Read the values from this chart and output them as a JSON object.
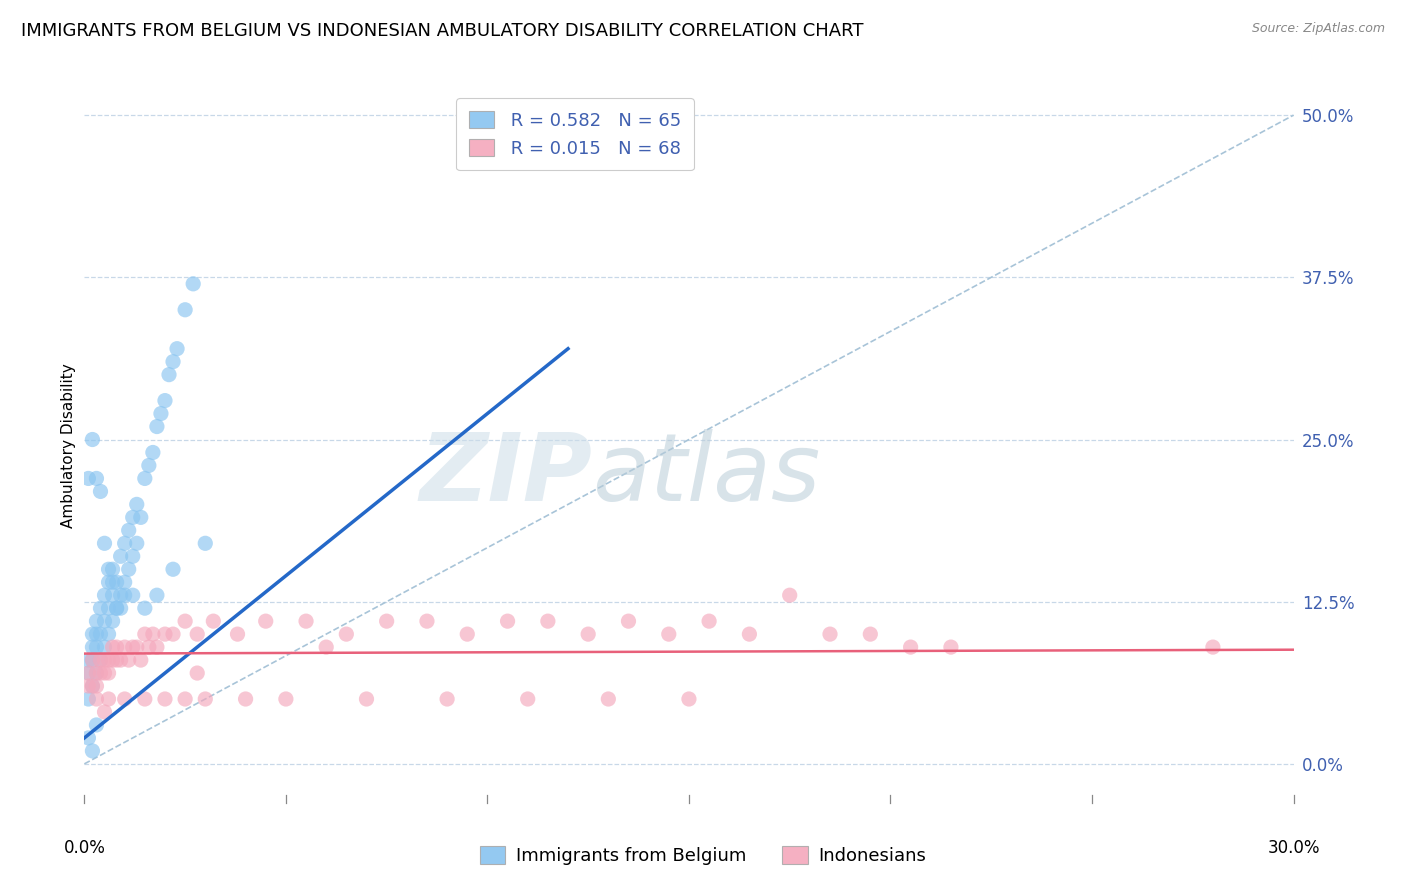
{
  "title": "IMMIGRANTS FROM BELGIUM VS INDONESIAN AMBULATORY DISABILITY CORRELATION CHART",
  "source": "Source: ZipAtlas.com",
  "ylabel_label": "Ambulatory Disability",
  "right_yticks": [
    0.0,
    0.125,
    0.25,
    0.375,
    0.5
  ],
  "right_ytick_labels": [
    "0.0%",
    "12.5%",
    "25.0%",
    "37.5%",
    "50.0%"
  ],
  "xmin": 0.0,
  "xmax": 0.3,
  "ymin": -0.03,
  "ymax": 0.52,
  "blue_R": 0.582,
  "blue_N": 65,
  "pink_R": 0.015,
  "pink_N": 68,
  "blue_color": "#89c4f0",
  "pink_color": "#f4a8bc",
  "blue_line_color": "#2468c8",
  "pink_line_color": "#e8607a",
  "dash_line_color": "#a8c4d8",
  "legend_label_blue": "Immigrants from Belgium",
  "legend_label_pink": "Indonesians",
  "blue_scatter_x": [
    0.001,
    0.001,
    0.001,
    0.002,
    0.002,
    0.002,
    0.002,
    0.003,
    0.003,
    0.003,
    0.003,
    0.004,
    0.004,
    0.004,
    0.005,
    0.005,
    0.005,
    0.006,
    0.006,
    0.006,
    0.007,
    0.007,
    0.007,
    0.008,
    0.008,
    0.009,
    0.009,
    0.01,
    0.01,
    0.011,
    0.011,
    0.012,
    0.012,
    0.013,
    0.013,
    0.014,
    0.015,
    0.016,
    0.017,
    0.018,
    0.019,
    0.02,
    0.021,
    0.022,
    0.023,
    0.025,
    0.027,
    0.001,
    0.002,
    0.003,
    0.004,
    0.005,
    0.006,
    0.007,
    0.008,
    0.009,
    0.01,
    0.012,
    0.015,
    0.018,
    0.022,
    0.03,
    0.001,
    0.002,
    0.003
  ],
  "blue_scatter_y": [
    0.05,
    0.07,
    0.08,
    0.06,
    0.08,
    0.09,
    0.1,
    0.07,
    0.09,
    0.1,
    0.11,
    0.08,
    0.1,
    0.12,
    0.09,
    0.11,
    0.13,
    0.1,
    0.12,
    0.14,
    0.11,
    0.13,
    0.15,
    0.12,
    0.14,
    0.13,
    0.16,
    0.14,
    0.17,
    0.15,
    0.18,
    0.16,
    0.19,
    0.17,
    0.2,
    0.19,
    0.22,
    0.23,
    0.24,
    0.26,
    0.27,
    0.28,
    0.3,
    0.31,
    0.32,
    0.35,
    0.37,
    0.22,
    0.25,
    0.22,
    0.21,
    0.17,
    0.15,
    0.14,
    0.12,
    0.12,
    0.13,
    0.13,
    0.12,
    0.13,
    0.15,
    0.17,
    0.02,
    0.01,
    0.03
  ],
  "pink_scatter_x": [
    0.001,
    0.001,
    0.002,
    0.002,
    0.003,
    0.003,
    0.004,
    0.004,
    0.005,
    0.005,
    0.006,
    0.006,
    0.007,
    0.007,
    0.008,
    0.008,
    0.009,
    0.01,
    0.011,
    0.012,
    0.013,
    0.014,
    0.015,
    0.016,
    0.017,
    0.018,
    0.02,
    0.022,
    0.025,
    0.028,
    0.032,
    0.038,
    0.045,
    0.055,
    0.065,
    0.075,
    0.085,
    0.095,
    0.105,
    0.115,
    0.125,
    0.135,
    0.145,
    0.155,
    0.165,
    0.175,
    0.185,
    0.195,
    0.205,
    0.215,
    0.003,
    0.006,
    0.01,
    0.015,
    0.02,
    0.025,
    0.03,
    0.04,
    0.05,
    0.07,
    0.09,
    0.11,
    0.13,
    0.15,
    0.005,
    0.028,
    0.06,
    0.28
  ],
  "pink_scatter_y": [
    0.06,
    0.07,
    0.06,
    0.08,
    0.07,
    0.06,
    0.08,
    0.07,
    0.07,
    0.08,
    0.08,
    0.07,
    0.09,
    0.08,
    0.08,
    0.09,
    0.08,
    0.09,
    0.08,
    0.09,
    0.09,
    0.08,
    0.1,
    0.09,
    0.1,
    0.09,
    0.1,
    0.1,
    0.11,
    0.1,
    0.11,
    0.1,
    0.11,
    0.11,
    0.1,
    0.11,
    0.11,
    0.1,
    0.11,
    0.11,
    0.1,
    0.11,
    0.1,
    0.11,
    0.1,
    0.13,
    0.1,
    0.1,
    0.09,
    0.09,
    0.05,
    0.05,
    0.05,
    0.05,
    0.05,
    0.05,
    0.05,
    0.05,
    0.05,
    0.05,
    0.05,
    0.05,
    0.05,
    0.05,
    0.04,
    0.07,
    0.09,
    0.09
  ],
  "blue_trend_x": [
    0.0,
    0.12
  ],
  "blue_trend_y": [
    0.02,
    0.32
  ],
  "pink_trend_x": [
    0.0,
    0.3
  ],
  "pink_trend_y": [
    0.085,
    0.088
  ],
  "dash_trend_x": [
    0.0,
    0.3
  ],
  "dash_trend_y": [
    0.0,
    0.5
  ],
  "bg_color": "#ffffff",
  "grid_color": "#c8d8e8",
  "axis_color": "#4060b0",
  "title_fontsize": 13,
  "label_fontsize": 11,
  "tick_fontsize": 12,
  "legend_fontsize": 13
}
